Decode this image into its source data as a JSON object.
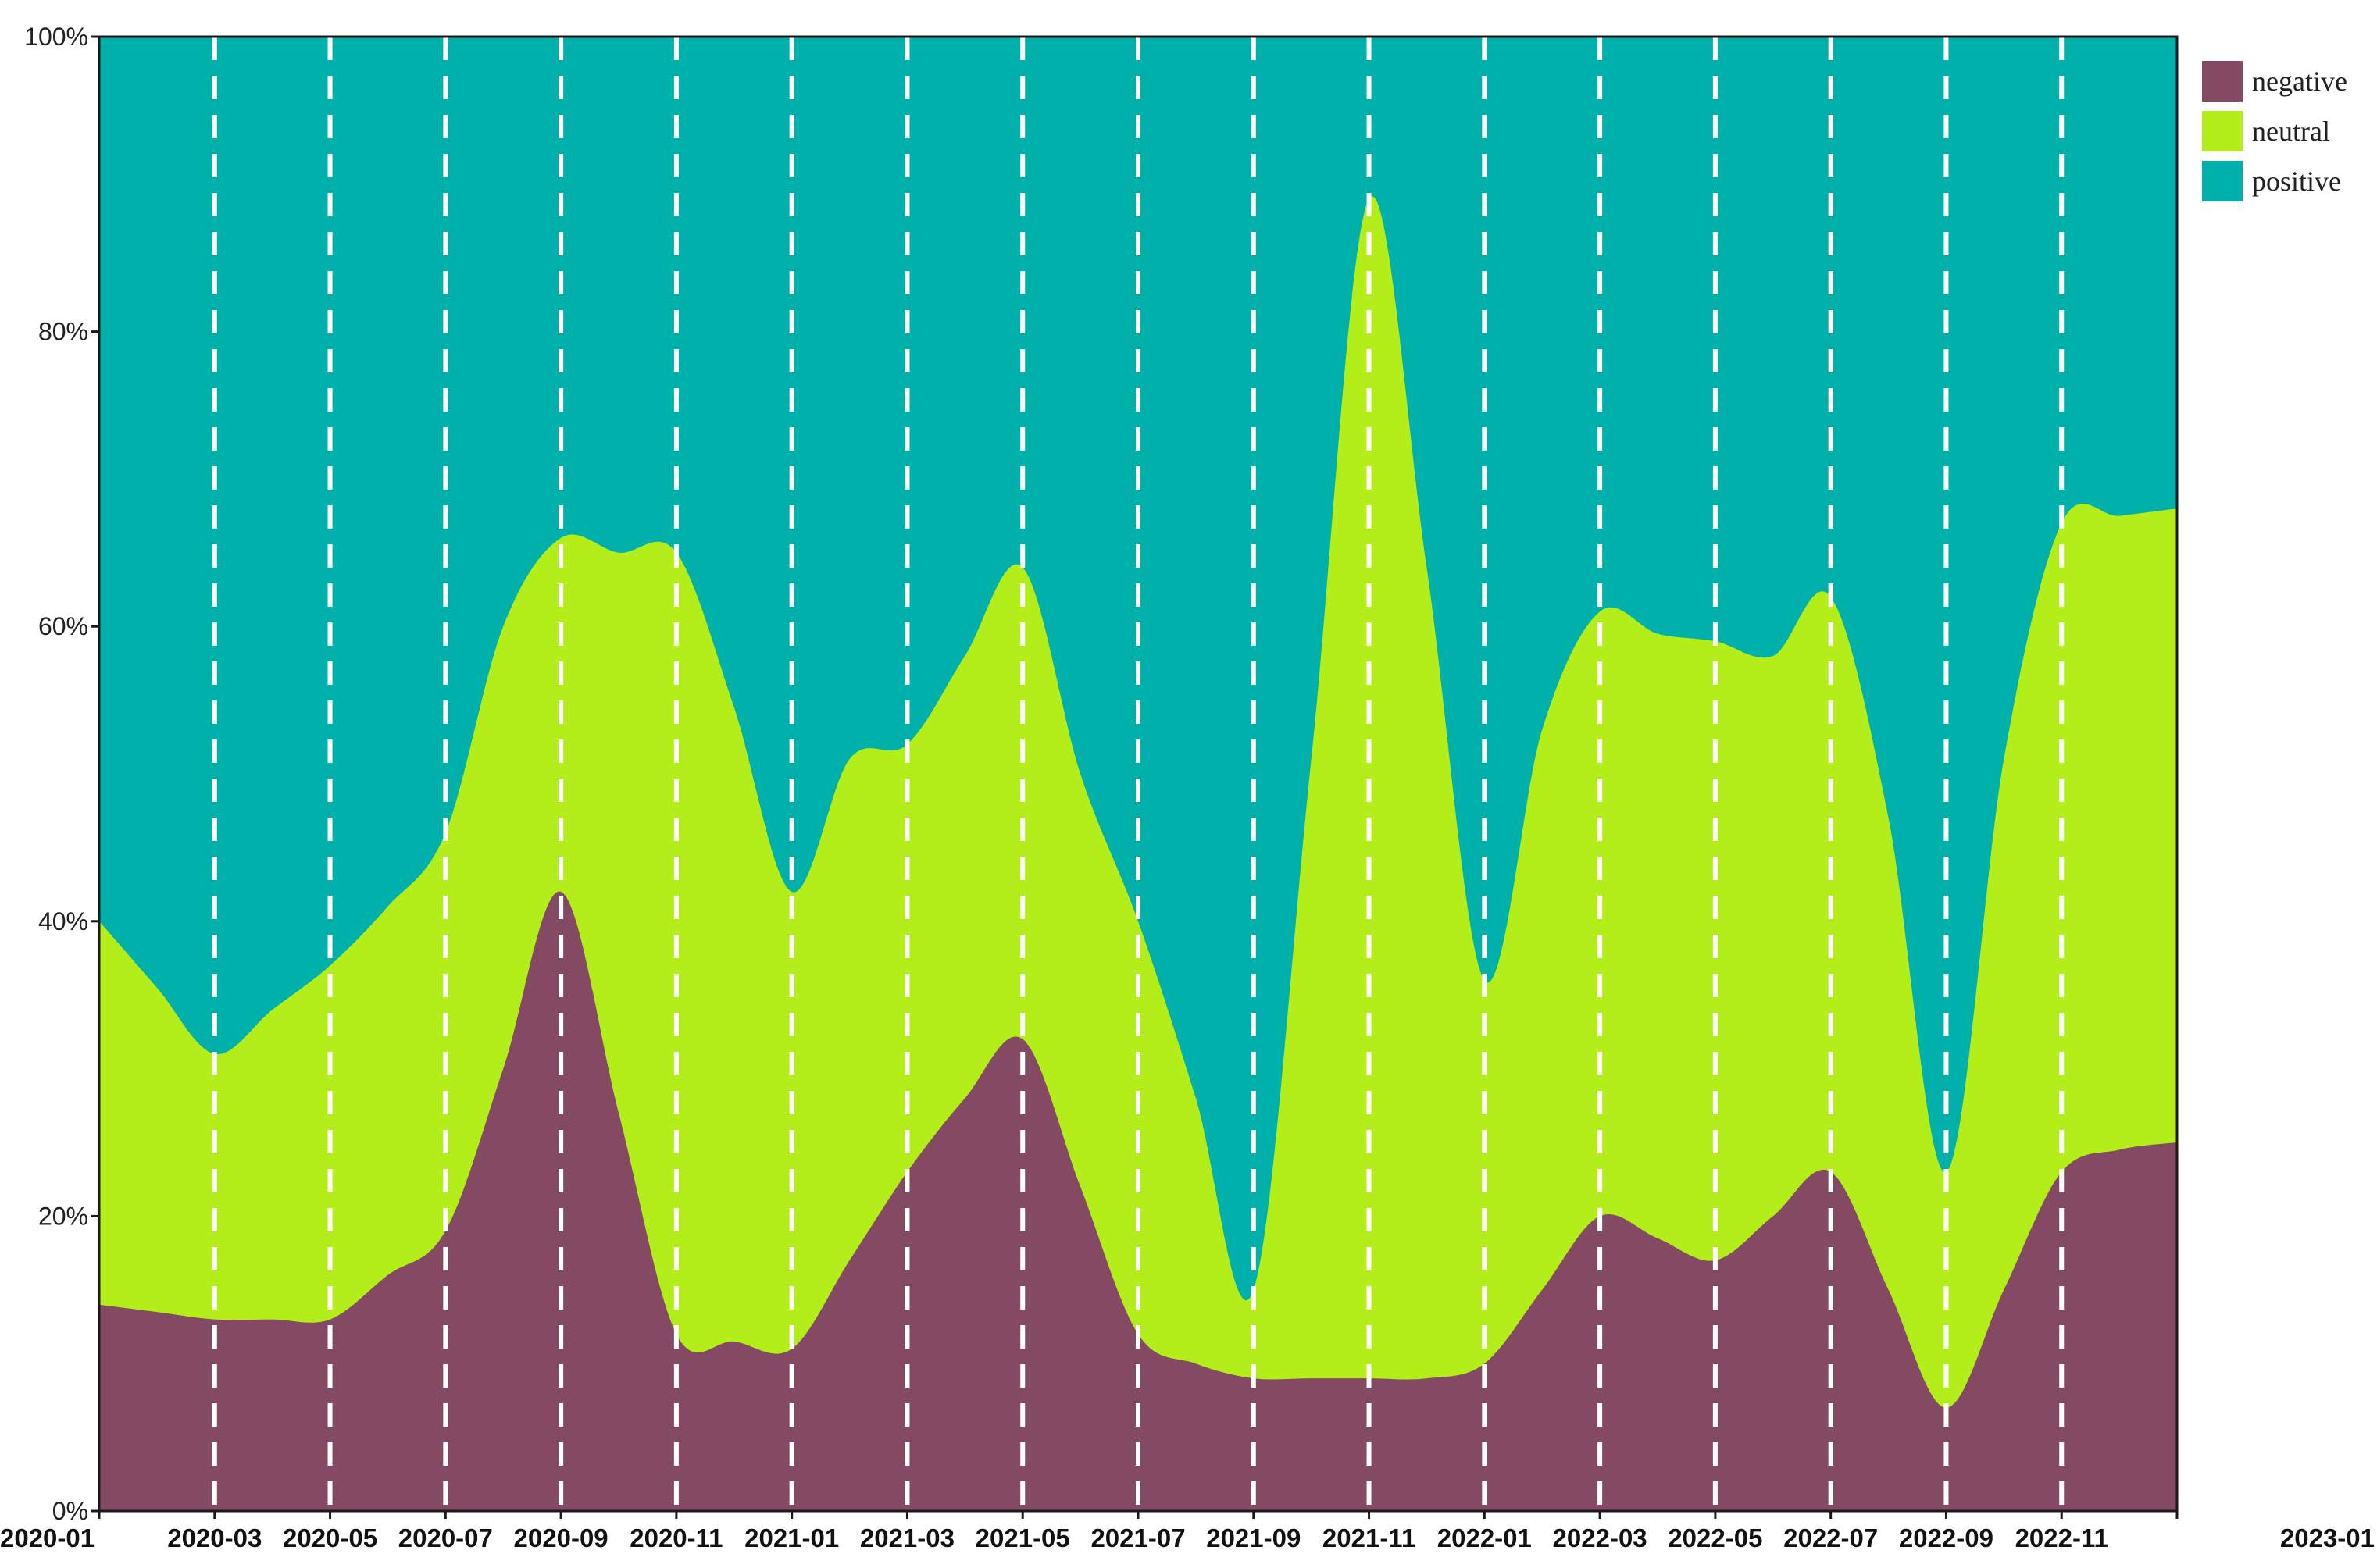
{
  "chart_data": {
    "type": "area",
    "stacked": true,
    "normalized": true,
    "x": [
      "2020-01",
      "2020-02",
      "2020-03",
      "2020-04",
      "2020-05",
      "2020-06",
      "2020-07",
      "2020-08",
      "2020-09",
      "2020-10",
      "2020-11",
      "2020-12",
      "2021-01",
      "2021-02",
      "2021-03",
      "2021-04",
      "2021-05",
      "2021-06",
      "2021-07",
      "2021-08",
      "2021-09",
      "2021-10",
      "2021-11",
      "2021-12",
      "2022-01",
      "2022-02",
      "2022-03",
      "2022-04",
      "2022-05",
      "2022-06",
      "2022-07",
      "2022-08",
      "2022-09",
      "2022-10",
      "2022-11",
      "2022-12",
      "2023-01"
    ],
    "xtick_labels": [
      "2020-01",
      "2020-03",
      "2020-05",
      "2020-07",
      "2020-09",
      "2020-11",
      "2021-01",
      "2021-03",
      "2021-05",
      "2021-07",
      "2021-09",
      "2021-11",
      "2022-01",
      "2022-03",
      "2022-05",
      "2022-07",
      "2022-09",
      "2022-11",
      "2023-01"
    ],
    "series": [
      {
        "name": "negative",
        "color": "#854a63",
        "values": [
          14,
          13.5,
          13,
          13,
          13,
          16,
          19,
          30,
          42,
          27,
          12,
          11.5,
          11,
          17,
          23,
          28,
          32,
          22,
          12,
          10,
          9,
          9,
          9,
          9,
          10,
          15,
          20,
          18.5,
          17,
          20,
          23,
          15,
          7,
          15,
          23,
          24.5,
          25
        ]
      },
      {
        "name": "neutral",
        "color": "#b3ee1a",
        "values": [
          26,
          22,
          18,
          21,
          24,
          25,
          27,
          30,
          24,
          38,
          53,
          43,
          31,
          34,
          29,
          30,
          32,
          28,
          28,
          18,
          6,
          42,
          80,
          55,
          26,
          38,
          41,
          41,
          42,
          38,
          39,
          32,
          16,
          36,
          44,
          43,
          43
        ]
      },
      {
        "name": "positive",
        "color": "#00b0aa",
        "values": [
          60,
          64.5,
          69,
          66,
          63,
          59,
          54,
          40,
          34,
          35,
          35,
          45.5,
          58,
          49,
          48,
          42,
          36,
          50,
          60,
          72,
          85,
          49,
          11,
          36,
          64,
          47,
          39,
          40.5,
          41,
          42,
          38,
          53,
          77,
          49,
          33,
          32.5,
          32
        ]
      }
    ],
    "ylim": [
      0,
      100
    ],
    "yticks": [
      "0%",
      "20%",
      "40%",
      "60%",
      "80%",
      "100%"
    ],
    "grid": "vertical dashed at each labeled tick",
    "legend": "top-right, outside plot"
  }
}
